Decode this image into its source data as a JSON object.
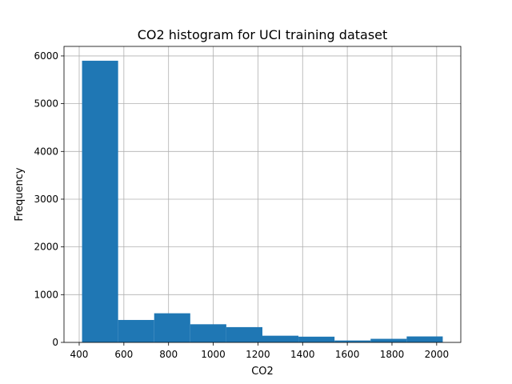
{
  "chart_data": {
    "type": "bar",
    "title": "CO2 histogram for UCI training dataset",
    "xlabel": "CO2",
    "ylabel": "Frequency",
    "bin_edges": [
      412.75,
      574.2,
      735.6,
      897.1,
      1058.5,
      1220.0,
      1381.4,
      1542.9,
      1704.3,
      1865.8,
      2027.2
    ],
    "values": [
      5900,
      470,
      610,
      380,
      320,
      140,
      120,
      40,
      75,
      125
    ],
    "xlim": [
      332,
      2108
    ],
    "ylim": [
      0,
      6200
    ],
    "xticks": [
      400,
      600,
      800,
      1000,
      1200,
      1400,
      1600,
      1800,
      2000
    ],
    "yticks": [
      0,
      1000,
      2000,
      3000,
      4000,
      5000,
      6000
    ],
    "grid": true,
    "bar_color": "#1f77b4"
  }
}
